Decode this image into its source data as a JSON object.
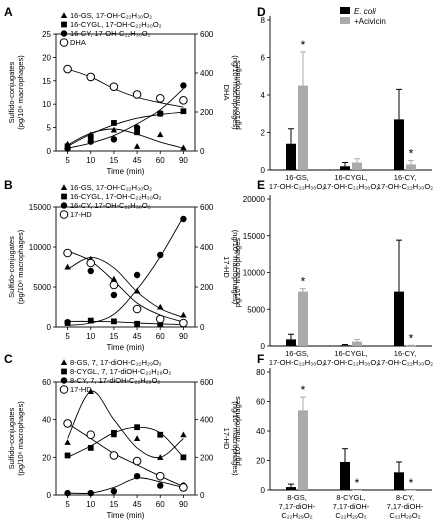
{
  "chart_data": [
    {
      "panel": "A",
      "type": "scatter",
      "xlabel": "Time (min)",
      "ylabel": [
        "Sulfido-conjugates",
        "(pg/10⁶ macrophages)"
      ],
      "y2label": [
        "DHA",
        "(ng/10⁶ macrophages)"
      ],
      "x": [
        "5",
        "10",
        "15",
        "45",
        "60",
        "90"
      ],
      "ylim": [
        0,
        25
      ],
      "yticks": [
        "0",
        "5",
        "10",
        "15",
        "20",
        "25"
      ],
      "y2lim": [
        0,
        600
      ],
      "y2ticks": [
        "0",
        "200",
        "400",
        "600"
      ],
      "legend": [
        "16-GS, 17-OH-C₂₂H₃₀O₂",
        "16-CYGL, 17-OH-C₂₂H₃₀O₂",
        "16-CY, 17-OH-C₂₂H₃₀O₂",
        "DHA"
      ],
      "series": [
        {
          "name": "16-GS, 17-OH-C₂₂H₃₀O₂",
          "marker": "triangle",
          "axis": "left",
          "values": [
            1.5,
            3.5,
            4.5,
            1.0,
            3.5,
            0.7
          ],
          "fit": [
            1.3,
            3.8,
            4.7,
            3.6,
            1.9,
            0.6
          ]
        },
        {
          "name": "16-CYGL, 17-OH-C₂₂H₃₀O₂",
          "marker": "square",
          "axis": "left",
          "values": [
            1.0,
            3.0,
            6.0,
            4.0,
            8.0,
            8.5
          ],
          "fit": [
            1.0,
            3.6,
            5.6,
            7.0,
            7.8,
            8.3
          ]
        },
        {
          "name": "16-CY, 17-OH-C₂₂H₃₀O₂",
          "marker": "circle",
          "axis": "left",
          "values": [
            0.5,
            2.0,
            2.5,
            5.0,
            8.0,
            14.0
          ],
          "fit": [
            0.6,
            1.7,
            3.3,
            5.8,
            8.8,
            13.3
          ]
        },
        {
          "name": "DHA",
          "marker": "open-circle",
          "axis": "right",
          "values": [
            420,
            380,
            330,
            290,
            270,
            260
          ],
          "fit": [
            420,
            380,
            320,
            275,
            248,
            225
          ]
        }
      ]
    },
    {
      "panel": "B",
      "type": "scatter",
      "xlabel": "Time (min)",
      "ylabel": [
        "Sulfido-conjugates",
        "(pg/10⁶ macrophages)"
      ],
      "y2label": [
        "17-HD",
        "(ng/10⁶ macrophages)"
      ],
      "x": [
        "5",
        "10",
        "15",
        "45",
        "60",
        "90"
      ],
      "ylim": [
        0,
        15000
      ],
      "yticks": [
        "0",
        "5000",
        "10000",
        "15000"
      ],
      "y2lim": [
        0,
        600
      ],
      "y2ticks": [
        "0",
        "200",
        "400",
        "600"
      ],
      "legend": [
        "16-GS, 17-OH-C₂₂H₃₀O₂",
        "16-CYGL, 17-OH-C₂₂H₃₀O₂",
        "16-CY, 17-OH-C₂₂H₃₀O₂",
        "17-HD"
      ],
      "series": [
        {
          "name": "16-GS, 17-OH-C₂₂H₃₀O₂",
          "marker": "triangle",
          "axis": "left",
          "values": [
            7500,
            8500,
            6000,
            4500,
            2500,
            1500
          ],
          "fit": [
            7200,
            8700,
            7400,
            4400,
            2300,
            1200
          ]
        },
        {
          "name": "16-CYGL, 17-OH-C₂₂H₃₀O₂",
          "marker": "square",
          "axis": "left",
          "values": [
            500,
            800,
            700,
            400,
            400,
            300
          ],
          "fit": [
            700,
            700,
            650,
            500,
            380,
            300
          ]
        },
        {
          "name": "16-CY, 17-OH-C₂₂H₃₀O₂",
          "marker": "circle",
          "axis": "left",
          "values": [
            600,
            7000,
            4000,
            6500,
            9000,
            13500
          ],
          "fit": [
            200,
            500,
            1600,
            4700,
            8800,
            13800
          ]
        },
        {
          "name": "17-HD",
          "marker": "open-circle",
          "axis": "right",
          "values": [
            370,
            320,
            210,
            90,
            40,
            20
          ],
          "fit": [
            380,
            330,
            230,
            120,
            60,
            25
          ]
        }
      ]
    },
    {
      "panel": "C",
      "type": "scatter",
      "xlabel": "Time (min)",
      "ylabel": [
        "Sulfido-conjugates",
        "(pg/10⁶ macrophages)"
      ],
      "y2label": [
        "17-HD",
        "(ng/10⁶ macrophages)"
      ],
      "x": [
        "5",
        "10",
        "15",
        "45",
        "60",
        "90"
      ],
      "ylim": [
        0,
        60
      ],
      "yticks": [
        "0",
        "20",
        "40",
        "60"
      ],
      "y2lim": [
        0,
        600
      ],
      "y2ticks": [
        "0",
        "200",
        "400",
        "600"
      ],
      "legend": [
        "8-GS, 7, 17-diOH-C₂₂H₂₉O₂",
        "8-CYGL, 7, 17-diOH-C₂₂H₂₉O₂",
        "8-CY, 7, 17-diOH-C₂₂H₂₉O₂",
        "17-HD"
      ],
      "series": [
        {
          "name": "8-GS, 7, 17-diOH-C₂₂H₂₉O₂",
          "marker": "triangle",
          "axis": "left",
          "values": [
            28,
            55,
            32,
            30,
            20,
            32
          ],
          "fit": [
            30,
            55,
            40,
            25,
            20,
            30
          ]
        },
        {
          "name": "8-CYGL, 7, 17-diOH-C₂₂H₂₉O₂",
          "marker": "square",
          "axis": "left",
          "values": [
            21,
            25,
            33,
            36,
            32,
            20
          ],
          "fit": [
            20,
            26,
            33,
            36,
            33,
            20
          ]
        },
        {
          "name": "8-CY, 7, 17-diOH-C₂₂H₂₉O₂",
          "marker": "circle",
          "axis": "left",
          "values": [
            1,
            1,
            2,
            10,
            5,
            5
          ],
          "fit": [
            1,
            1,
            4,
            9,
            7,
            4
          ]
        },
        {
          "name": "17-HD",
          "marker": "open-circle",
          "axis": "right",
          "values": [
            380,
            320,
            210,
            180,
            100,
            40
          ],
          "fit": [
            380,
            300,
            220,
            160,
            100,
            45
          ]
        }
      ]
    },
    {
      "panel": "D",
      "type": "bar",
      "ylabel": "pg/10⁶ macrophages",
      "ylim": [
        0,
        8
      ],
      "yticks": [
        "0",
        "2",
        "4",
        "6",
        "8"
      ],
      "legend": [
        "E. coli",
        "+Acivicin"
      ],
      "categories": [
        [
          "16-GS,",
          "17-OH-C₂₂H₃₀O₂"
        ],
        [
          "16-CYGL,",
          "17-OH-C₂₂H₃₀O₂"
        ],
        [
          "16-CY,",
          "17-OH-C₂₂H₃₀O₂"
        ]
      ],
      "series": [
        {
          "name": "E. coli",
          "values": [
            1.4,
            0.2,
            2.7
          ],
          "errors": [
            0.8,
            0.2,
            1.6
          ]
        },
        {
          "name": "+Acivicin",
          "values": [
            4.5,
            0.4,
            0.3
          ],
          "errors": [
            1.8,
            0.2,
            0.2
          ]
        }
      ],
      "annotations": [
        {
          "label": "*",
          "series": 1,
          "category": 0
        },
        {
          "label": "*",
          "series": 1,
          "category": 2
        }
      ]
    },
    {
      "panel": "E",
      "type": "bar",
      "ylabel": "pg/10⁶ macrophages",
      "ylim": [
        0,
        20000
      ],
      "yticks": [
        "0",
        "5000",
        "10000",
        "15000",
        "20000"
      ],
      "categories": [
        [
          "16-GS,",
          "17-OH-C₂₂H₃₀O₂"
        ],
        [
          "16-CYGL,",
          "17-OH-C₂₂H₃₀O₂"
        ],
        [
          "16-CY,",
          "17-OH-C₂₂H₃₀O₂"
        ]
      ],
      "series": [
        {
          "name": "E. coli",
          "values": [
            900,
            100,
            7400
          ],
          "errors": [
            700,
            100,
            7000
          ]
        },
        {
          "name": "+Acivicin",
          "values": [
            7400,
            600,
            50
          ],
          "errors": [
            400,
            300,
            50
          ]
        }
      ],
      "annotations": [
        {
          "label": "*",
          "series": 1,
          "category": 0
        },
        {
          "label": "*",
          "series": 1,
          "category": 2
        }
      ]
    },
    {
      "panel": "F",
      "type": "bar",
      "ylabel": "pg/10⁶ macrophages",
      "ylim": [
        0,
        80
      ],
      "yticks": [
        "0",
        "20",
        "40",
        "60",
        "80"
      ],
      "categories": [
        [
          "8-GS,",
          "7,17-diOH-",
          "C₂₂H₂₉O₂"
        ],
        [
          "8-CYGL,",
          "7,17-diOH-",
          "C₂₂H₂₉O₂"
        ],
        [
          "8-CY,",
          "7,17-diOH-",
          "C₂₂H₂₉O₂"
        ]
      ],
      "series": [
        {
          "name": "E. coli",
          "values": [
            2,
            19,
            12
          ],
          "errors": [
            2,
            9,
            7
          ]
        },
        {
          "name": "+Acivicin",
          "values": [
            54,
            0,
            0
          ],
          "errors": [
            9,
            0,
            0
          ]
        }
      ],
      "annotations": [
        {
          "label": "*",
          "series": 1,
          "category": 0
        },
        {
          "label": "*",
          "series": 1,
          "category": 1
        },
        {
          "label": "*",
          "series": 1,
          "category": 2
        }
      ]
    }
  ]
}
